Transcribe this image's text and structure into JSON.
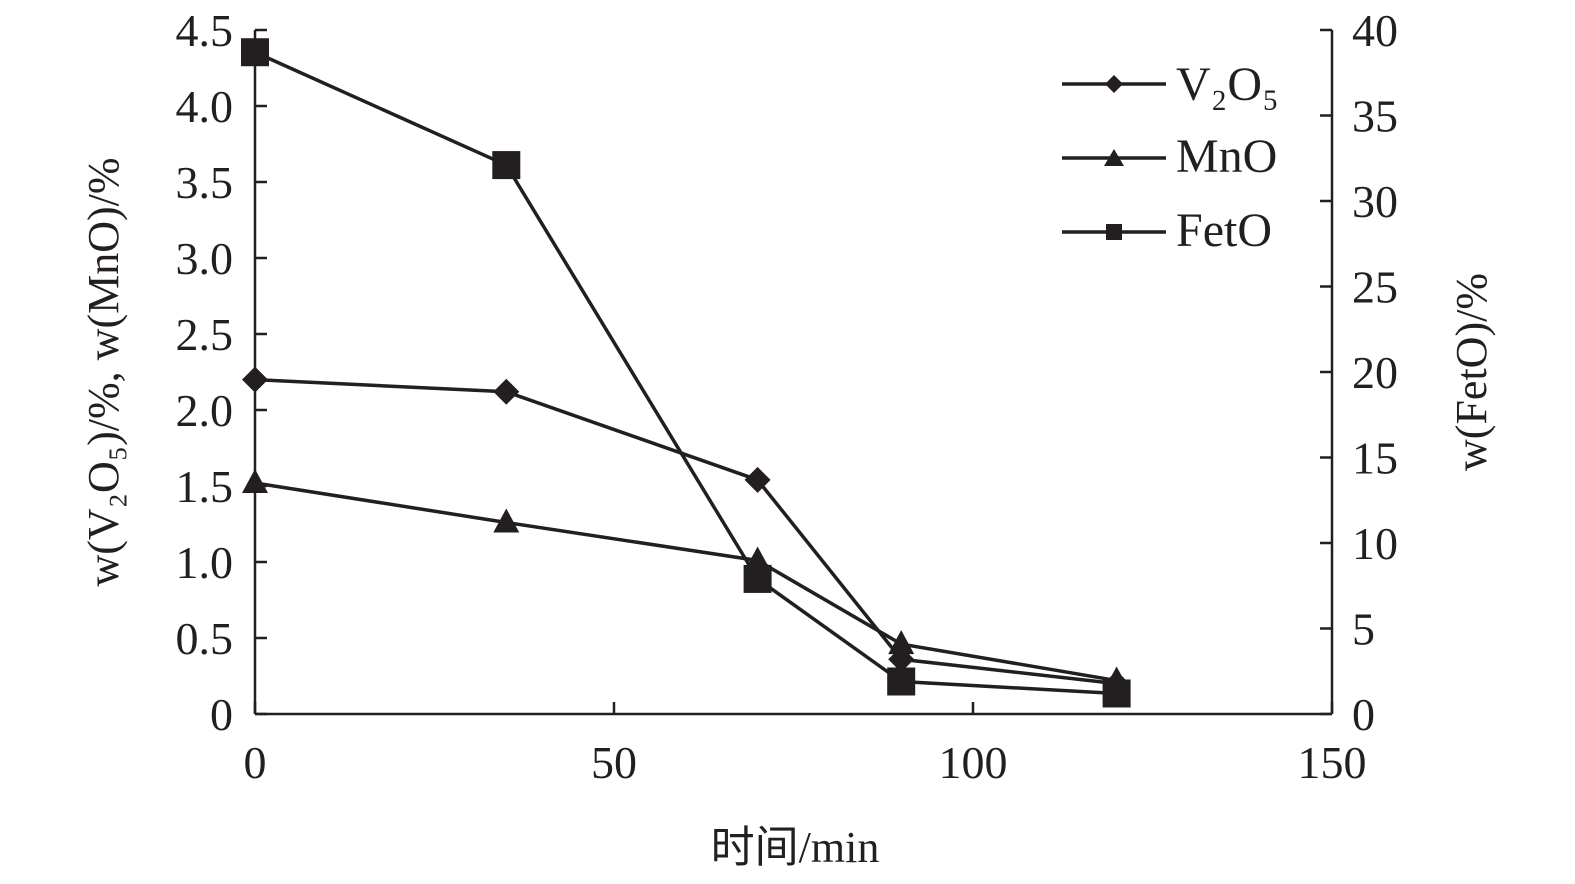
{
  "chart_data": {
    "type": "line",
    "x_label": "时间/min",
    "y_left_label": "w(V₂O₅)/%, w(MnO)/%",
    "y_right_label": "w(FetO)/%",
    "xlim": [
      0,
      150
    ],
    "ylim_left": [
      0,
      4.5
    ],
    "ylim_right": [
      0,
      40
    ],
    "x_ticks": [
      "0",
      "50",
      "100",
      "150"
    ],
    "y_left_ticks": [
      "0",
      "0.5",
      "1.0",
      "1.5",
      "2.0",
      "2.5",
      "3.0",
      "3.5",
      "4.0",
      "4.5"
    ],
    "y_right_ticks": [
      "0",
      "5",
      "10",
      "15",
      "20",
      "25",
      "30",
      "35",
      "40"
    ],
    "grid": false,
    "legend_position": "top-right",
    "series": [
      {
        "name": "V₂O₅",
        "axis": "left",
        "marker": "diamond",
        "x": [
          0,
          35,
          70,
          90,
          120
        ],
        "y": [
          2.2,
          2.12,
          1.54,
          0.36,
          0.2
        ]
      },
      {
        "name": "MnO",
        "axis": "left",
        "marker": "triangle",
        "x": [
          0,
          35,
          70,
          90,
          120
        ],
        "y": [
          1.52,
          1.26,
          1.01,
          0.46,
          0.22
        ]
      },
      {
        "name": "FetO",
        "axis": "right",
        "marker": "square",
        "x": [
          0,
          35,
          70,
          90,
          120
        ],
        "y": [
          38.7,
          32.1,
          7.9,
          1.9,
          1.2
        ]
      }
    ]
  }
}
